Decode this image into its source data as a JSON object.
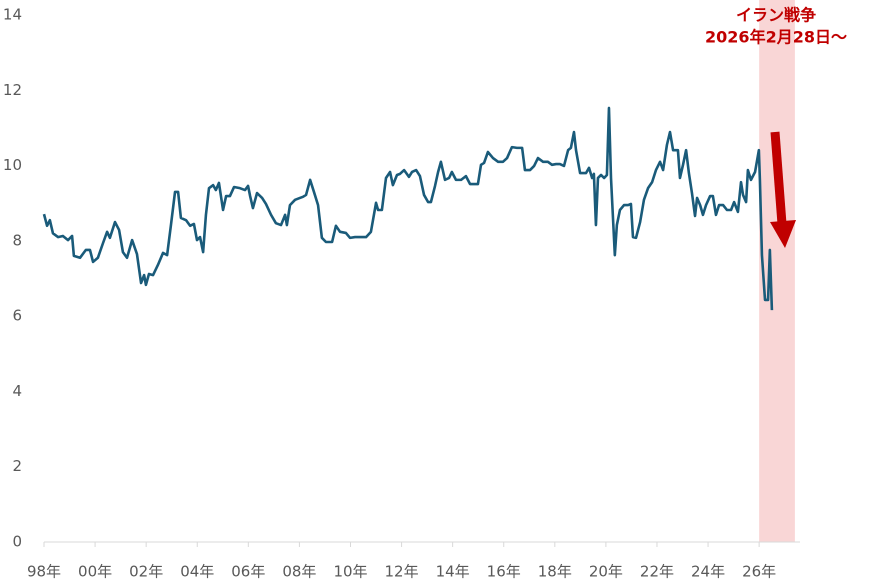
{
  "chart_data": {
    "type": "line",
    "annotation": [
      "イラン戦争",
      "2026年2月28日〜"
    ],
    "highlight_range": [
      2026.0,
      2027.4
    ],
    "highlight_color": "#f9d6d6",
    "annotation_color": "#c00000",
    "color": "#1a5b7a",
    "xlim": [
      1998,
      2027.6
    ],
    "ylim": [
      0,
      14
    ],
    "yticks": [
      0,
      2,
      4,
      6,
      8,
      10,
      12,
      14
    ],
    "xticks": [
      {
        "value": 1998,
        "label": "98年"
      },
      {
        "value": 2000,
        "label": "00年"
      },
      {
        "value": 2002,
        "label": "02年"
      },
      {
        "value": 2004,
        "label": "04年"
      },
      {
        "value": 2006,
        "label": "06年"
      },
      {
        "value": 2008,
        "label": "08年"
      },
      {
        "value": 2010,
        "label": "10年"
      },
      {
        "value": 2012,
        "label": "12年"
      },
      {
        "value": 2014,
        "label": "14年"
      },
      {
        "value": 2016,
        "label": "16年"
      },
      {
        "value": 2018,
        "label": "18年"
      },
      {
        "value": 2020,
        "label": "20年"
      },
      {
        "value": 2022,
        "label": "22年"
      },
      {
        "value": 2024,
        "label": "24年"
      },
      {
        "value": 2026,
        "label": "26年"
      }
    ],
    "x": [
      1998.0,
      1998.12,
      1998.23,
      1998.35,
      1998.55,
      1998.74,
      1998.94,
      1999.1,
      1999.17,
      1999.41,
      1999.64,
      1999.8,
      1999.92,
      2000.11,
      2000.31,
      2000.47,
      2000.58,
      2000.78,
      2000.94,
      2001.09,
      2001.25,
      2001.45,
      2001.64,
      2001.8,
      2001.92,
      2001.99,
      2002.11,
      2002.27,
      2002.46,
      2002.66,
      2002.82,
      2002.97,
      2003.13,
      2003.25,
      2003.36,
      2003.56,
      2003.72,
      2003.87,
      2003.99,
      2004.11,
      2004.23,
      2004.34,
      2004.46,
      2004.62,
      2004.73,
      2004.85,
      2005.01,
      2005.13,
      2005.28,
      2005.44,
      2005.67,
      2005.87,
      2005.99,
      2006.07,
      2006.18,
      2006.34,
      2006.54,
      2006.69,
      2006.89,
      2007.08,
      2007.28,
      2007.44,
      2007.51,
      2007.63,
      2007.83,
      2008.02,
      2008.14,
      2008.26,
      2008.42,
      2008.57,
      2008.73,
      2008.88,
      2009.04,
      2009.28,
      2009.43,
      2009.59,
      2009.82,
      2009.98,
      2010.18,
      2010.37,
      2010.61,
      2010.8,
      2011.0,
      2011.08,
      2011.23,
      2011.39,
      2011.55,
      2011.66,
      2011.82,
      2011.94,
      2012.1,
      2012.29,
      2012.41,
      2012.57,
      2012.72,
      2012.88,
      2013.04,
      2013.15,
      2013.31,
      2013.43,
      2013.54,
      2013.7,
      2013.86,
      2013.97,
      2014.13,
      2014.33,
      2014.52,
      2014.68,
      2014.84,
      2014.99,
      2015.11,
      2015.23,
      2015.38,
      2015.58,
      2015.78,
      2015.97,
      2016.13,
      2016.32,
      2016.52,
      2016.72,
      2016.83,
      2017.03,
      2017.19,
      2017.34,
      2017.54,
      2017.73,
      2017.89,
      2018.05,
      2018.2,
      2018.36,
      2018.52,
      2018.63,
      2018.75,
      2018.83,
      2018.99,
      2019.22,
      2019.34,
      2019.46,
      2019.53,
      2019.61,
      2019.69,
      2019.81,
      2019.93,
      2020.04,
      2020.12,
      2020.2,
      2020.35,
      2020.43,
      2020.55,
      2020.71,
      2020.87,
      2020.98,
      2021.06,
      2021.18,
      2021.34,
      2021.49,
      2021.65,
      2021.81,
      2021.96,
      2022.12,
      2022.24,
      2022.39,
      2022.51,
      2022.63,
      2022.82,
      2022.9,
      2023.02,
      2023.14,
      2023.25,
      2023.37,
      2023.49,
      2023.57,
      2023.69,
      2023.8,
      2023.92,
      2024.08,
      2024.19,
      2024.31,
      2024.43,
      2024.59,
      2024.74,
      2024.9,
      2025.02,
      2025.17,
      2025.29,
      2025.37,
      2025.49,
      2025.56,
      2025.68,
      2025.84,
      2025.99,
      2026.03,
      2026.11,
      2026.23,
      2026.35,
      2026.42,
      2026.5
    ],
    "values": [
      8.71,
      8.4,
      8.55,
      8.2,
      8.1,
      8.13,
      8.02,
      8.13,
      7.6,
      7.55,
      7.76,
      7.76,
      7.44,
      7.55,
      7.94,
      8.24,
      8.08,
      8.5,
      8.29,
      7.7,
      7.55,
      8.02,
      7.65,
      6.88,
      7.09,
      6.83,
      7.12,
      7.09,
      7.36,
      7.68,
      7.62,
      8.42,
      9.3,
      9.3,
      8.61,
      8.55,
      8.4,
      8.45,
      8.02,
      8.1,
      7.7,
      8.69,
      9.4,
      9.48,
      9.35,
      9.54,
      8.82,
      9.19,
      9.19,
      9.43,
      9.4,
      9.35,
      9.46,
      9.19,
      8.87,
      9.27,
      9.14,
      8.98,
      8.69,
      8.47,
      8.42,
      8.69,
      8.42,
      8.95,
      9.09,
      9.14,
      9.17,
      9.22,
      9.62,
      9.3,
      8.95,
      8.08,
      7.97,
      7.97,
      8.4,
      8.24,
      8.21,
      8.08,
      8.1,
      8.1,
      8.1,
      8.24,
      9.01,
      8.82,
      8.82,
      9.67,
      9.83,
      9.48,
      9.75,
      9.78,
      9.88,
      9.7,
      9.83,
      9.88,
      9.72,
      9.22,
      9.03,
      9.03,
      9.46,
      9.83,
      10.1,
      9.62,
      9.67,
      9.83,
      9.62,
      9.62,
      9.72,
      9.51,
      9.51,
      9.51,
      10.02,
      10.07,
      10.36,
      10.2,
      10.1,
      10.1,
      10.2,
      10.49,
      10.47,
      10.47,
      9.88,
      9.88,
      9.99,
      10.2,
      10.1,
      10.1,
      10.02,
      10.04,
      10.04,
      9.99,
      10.41,
      10.47,
      10.89,
      10.41,
      9.8,
      9.8,
      9.94,
      9.67,
      9.78,
      8.42,
      9.67,
      9.75,
      9.67,
      9.75,
      11.53,
      9.67,
      7.62,
      8.42,
      8.82,
      8.95,
      8.95,
      8.98,
      8.1,
      8.08,
      8.5,
      9.09,
      9.4,
      9.56,
      9.88,
      10.1,
      9.88,
      10.55,
      10.89,
      10.41,
      10.41,
      9.67,
      10.02,
      10.41,
      9.8,
      9.27,
      8.66,
      9.14,
      8.95,
      8.69,
      8.95,
      9.19,
      9.19,
      8.69,
      8.95,
      8.95,
      8.82,
      8.82,
      9.03,
      8.77,
      9.56,
      9.22,
      9.03,
      9.88,
      9.62,
      9.83,
      10.41,
      9.62,
      7.62,
      6.43,
      6.43,
      7.76,
      6.16
    ]
  }
}
